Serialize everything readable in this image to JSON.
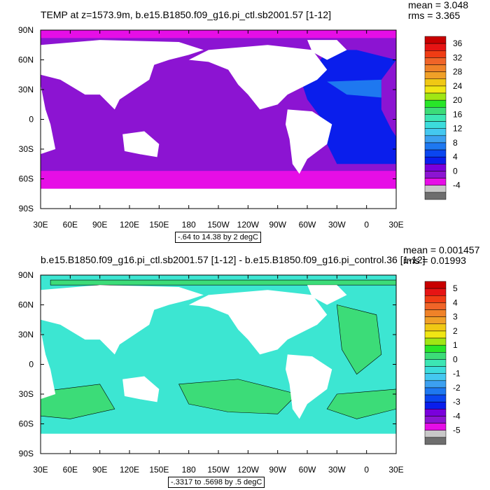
{
  "colors": {
    "land": "#ffffff",
    "frame": "#000000",
    "palette": [
      "#6e6e6e",
      "#c8c8c8",
      "#e60ee6",
      "#8c14d2",
      "#7a00dc",
      "#0a1eec",
      "#0a46f0",
      "#1e78f0",
      "#3ca0f0",
      "#44c8f0",
      "#3cdcdc",
      "#3ce6b4",
      "#3cdc78",
      "#28e628",
      "#a0e614",
      "#f0e614",
      "#f0c814",
      "#f0a028",
      "#f08228",
      "#f06428",
      "#f03c14",
      "#e61414",
      "#c80000"
    ]
  },
  "chart_data": [
    {
      "type": "heatmap",
      "title": "TEMP at z=1573.9m, b.e15.B1850.f09_g16.pi_ctl.sb2001.57 [1-12]",
      "mean_label": "mean = 3.048",
      "rms_label": "rms = 3.365",
      "info": "-.64 to 14.38 by 2 degC",
      "x_ticks": [
        "30E",
        "60E",
        "90E",
        "120E",
        "150E",
        "180",
        "150W",
        "120W",
        "90W",
        "60W",
        "30W",
        "0",
        "30E"
      ],
      "y_ticks": [
        "90N",
        "60N",
        "30N",
        "0",
        "30S",
        "60S",
        "90S"
      ],
      "colorbar": {
        "labels": [
          "36",
          "32",
          "28",
          "24",
          "20",
          "16",
          "12",
          "8",
          "4",
          "0",
          "-4"
        ],
        "colors": [
          "#c80000",
          "#e61414",
          "#f03c14",
          "#f06428",
          "#f08228",
          "#f0a028",
          "#f0c814",
          "#f0e614",
          "#a0e614",
          "#28e628",
          "#3cdc78",
          "#3ce6b4",
          "#3cdcdc",
          "#44c8f0",
          "#3ca0f0",
          "#1e78f0",
          "#0a46f0",
          "#0a1eec",
          "#7a00dc",
          "#8c14d2",
          "#e60ee6",
          "#c8c8c8",
          "#6e6e6e"
        ]
      },
      "fields": {
        "main": "#8c14d2",
        "north_polar": "#e60ee6",
        "southern_band": "#e60ee6",
        "atlantic": "#0a1eec",
        "atlantic_warm": "#1e78f0"
      }
    },
    {
      "type": "heatmap",
      "title": "b.e15.B1850.f09_g16.pi_ctl.sb2001.57 [1-12] - b.e15.B1850.f09_g16.pi_control.36 [1-12]",
      "mean_label": "mean = 0.001457",
      "rms_label": "rms = 0.01993",
      "info": "-.3317 to .5698 by .5 degC",
      "x_ticks": [
        "30E",
        "60E",
        "90E",
        "120E",
        "150E",
        "180",
        "150W",
        "120W",
        "90W",
        "60W",
        "30W",
        "0",
        "30E"
      ],
      "y_ticks": [
        "90N",
        "60N",
        "30N",
        "0",
        "30S",
        "60S",
        "90S"
      ],
      "colorbar": {
        "labels": [
          "5",
          "4",
          "3",
          "2",
          "1",
          "0",
          "-1",
          "-2",
          "-3",
          "-4",
          "-5"
        ],
        "colors": [
          "#c80000",
          "#e61414",
          "#f03c14",
          "#f06428",
          "#f08228",
          "#f0a028",
          "#f0c814",
          "#f0e614",
          "#a0e614",
          "#28e628",
          "#3cdc78",
          "#3ce6b4",
          "#3cdcdc",
          "#44c8f0",
          "#3ca0f0",
          "#1e78f0",
          "#0a46f0",
          "#0a1eec",
          "#7a00dc",
          "#8c14d2",
          "#e60ee6",
          "#c8c8c8",
          "#6e6e6e"
        ]
      },
      "fields": {
        "main": "#3ce6d2",
        "positive": "#3cdc78"
      }
    }
  ]
}
